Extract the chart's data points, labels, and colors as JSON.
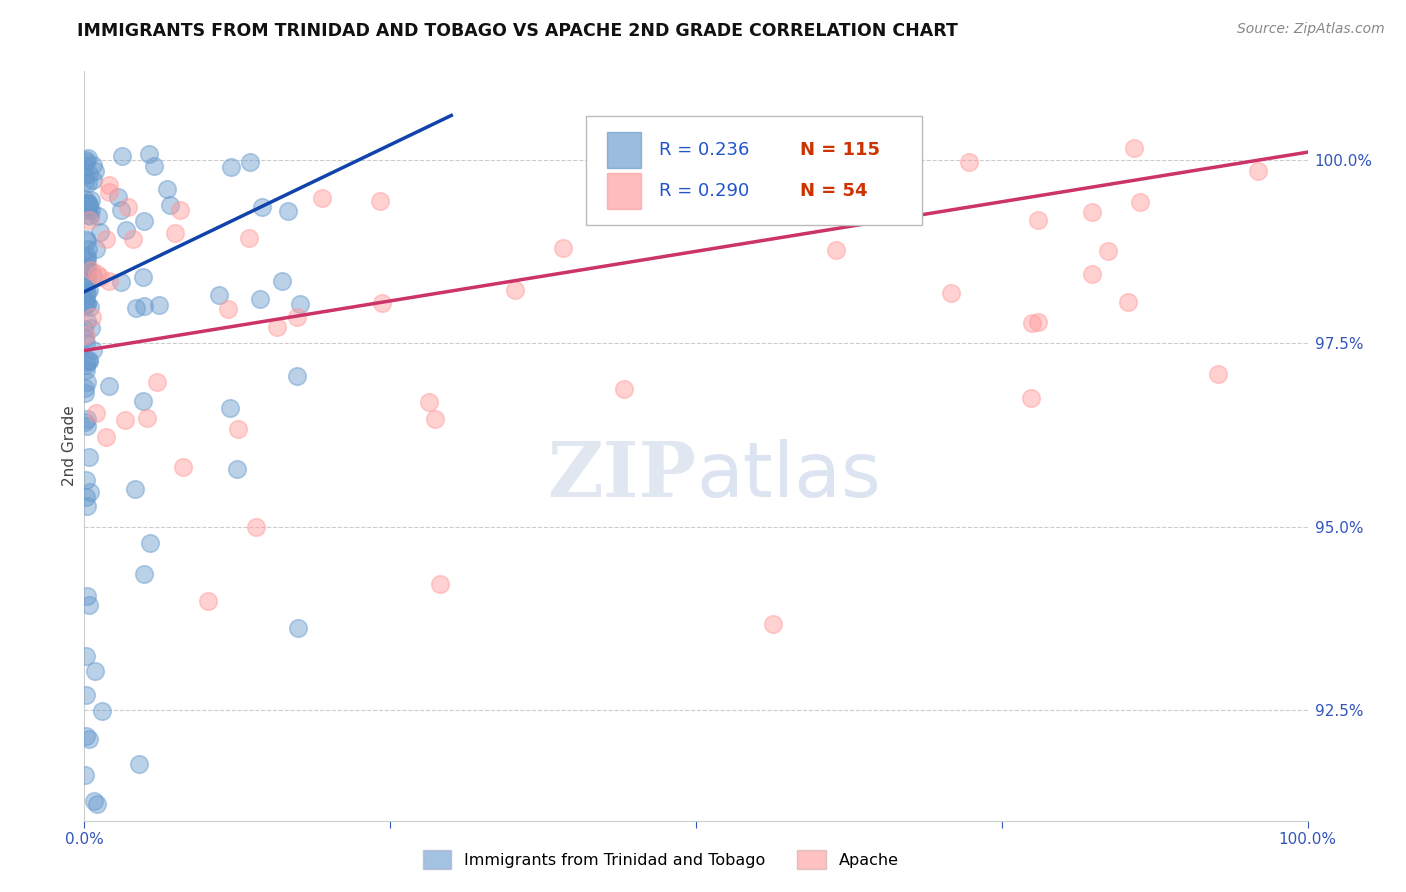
{
  "title": "IMMIGRANTS FROM TRINIDAD AND TOBAGO VS APACHE 2ND GRADE CORRELATION CHART",
  "source": "Source: ZipAtlas.com",
  "ylabel": "2nd Grade",
  "ylabel_right_labels": [
    "100.0%",
    "97.5%",
    "95.0%",
    "92.5%"
  ],
  "ylabel_right_values": [
    100.0,
    97.5,
    95.0,
    92.5
  ],
  "legend_blue_r": "R = 0.236",
  "legend_blue_n": "N = 115",
  "legend_pink_r": "R = 0.290",
  "legend_pink_n": "N = 54",
  "legend_label_blue": "Immigrants from Trinidad and Tobago",
  "legend_label_pink": "Apache",
  "blue_color": "#6699cc",
  "pink_color": "#ff9999",
  "blue_line_color": "#1144aa",
  "pink_line_color": "#cc3366",
  "xmin": 0.0,
  "xmax": 100.0,
  "ymin": 91.0,
  "ymax": 101.2,
  "blue_trend": [
    0.0,
    30.0,
    98.2,
    100.6
  ],
  "pink_trend": [
    0.0,
    100.0,
    97.4,
    100.1
  ]
}
